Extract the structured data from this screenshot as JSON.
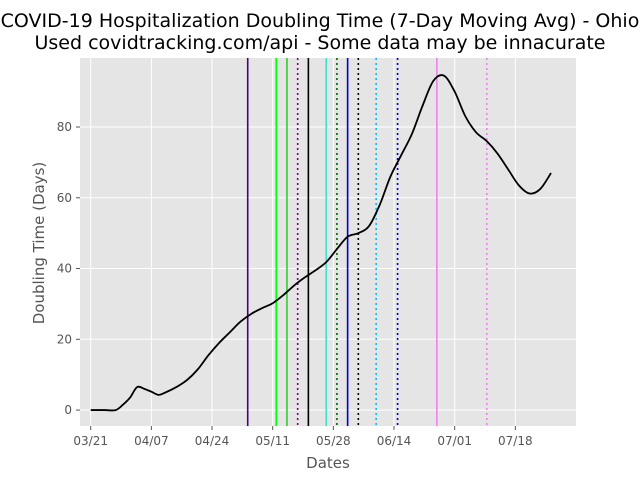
{
  "chart_data": {
    "type": "line",
    "title_lines": [
      "COVID-19 Hospitalization Doubling Time (7-Day Moving Avg) - Ohio",
      "Used covidtracking.com/api - Some data may be innacurate"
    ],
    "xlabel": "Dates",
    "ylabel": "Doubling Time (Days)",
    "x_axis": {
      "type": "date",
      "year": 2020,
      "range": [
        "2020-03-18",
        "2020-08-04"
      ]
    },
    "ylim": [
      -4.5,
      99.5
    ],
    "grid": true,
    "x_ticks": [
      {
        "date": "2020-03-21",
        "label": "03/21"
      },
      {
        "date": "2020-04-07",
        "label": "04/07"
      },
      {
        "date": "2020-04-24",
        "label": "04/24"
      },
      {
        "date": "2020-05-11",
        "label": "05/11"
      },
      {
        "date": "2020-05-28",
        "label": "05/28"
      },
      {
        "date": "2020-06-14",
        "label": "06/14"
      },
      {
        "date": "2020-07-01",
        "label": "07/01"
      },
      {
        "date": "2020-07-18",
        "label": "07/18"
      }
    ],
    "y_ticks": [
      {
        "value": 0,
        "label": "0"
      },
      {
        "value": 20,
        "label": "20"
      },
      {
        "value": 40,
        "label": "40"
      },
      {
        "value": 60,
        "label": "60"
      },
      {
        "value": 80,
        "label": "80"
      }
    ],
    "series": [
      {
        "color": "#000000",
        "points": [
          [
            "2020-03-21",
            0
          ],
          [
            "2020-03-25",
            0
          ],
          [
            "2020-03-28",
            0
          ],
          [
            "2020-03-30",
            1.5
          ],
          [
            "2020-04-01",
            3.5
          ],
          [
            "2020-04-03",
            6.5
          ],
          [
            "2020-04-05",
            6
          ],
          [
            "2020-04-07",
            5.2
          ],
          [
            "2020-04-09",
            4.3
          ],
          [
            "2020-04-11",
            5.0
          ],
          [
            "2020-04-14",
            6.5
          ],
          [
            "2020-04-17",
            8.5
          ],
          [
            "2020-04-20",
            11.5
          ],
          [
            "2020-04-23",
            15.5
          ],
          [
            "2020-04-26",
            19
          ],
          [
            "2020-04-29",
            22
          ],
          [
            "2020-05-02",
            25
          ],
          [
            "2020-05-05",
            27.2
          ],
          [
            "2020-05-08",
            28.8
          ],
          [
            "2020-05-11",
            30.2
          ],
          [
            "2020-05-14",
            32.5
          ],
          [
            "2020-05-17",
            35.2
          ],
          [
            "2020-05-20",
            37.5
          ],
          [
            "2020-05-23",
            39.5
          ],
          [
            "2020-05-26",
            41.8
          ],
          [
            "2020-05-29",
            45.5
          ],
          [
            "2020-06-01",
            49
          ],
          [
            "2020-06-04",
            50
          ],
          [
            "2020-06-07",
            52
          ],
          [
            "2020-06-10",
            58
          ],
          [
            "2020-06-13",
            66
          ],
          [
            "2020-06-16",
            72
          ],
          [
            "2020-06-19",
            78
          ],
          [
            "2020-06-22",
            86
          ],
          [
            "2020-06-25",
            93
          ],
          [
            "2020-06-28",
            94.5
          ],
          [
            "2020-07-01",
            90
          ],
          [
            "2020-07-04",
            83
          ],
          [
            "2020-07-07",
            78.5
          ],
          [
            "2020-07-10",
            76
          ],
          [
            "2020-07-13",
            72.5
          ],
          [
            "2020-07-16",
            68
          ],
          [
            "2020-07-19",
            63.5
          ],
          [
            "2020-07-22",
            61.2
          ],
          [
            "2020-07-25",
            62.5
          ],
          [
            "2020-07-28",
            67
          ]
        ]
      }
    ],
    "vertical_lines": [
      {
        "date": "2020-05-04",
        "color": "#4b0082",
        "style": "solid"
      },
      {
        "date": "2020-05-12",
        "color": "#00ff00",
        "style": "solid"
      },
      {
        "date": "2020-05-15",
        "color": "#32cd32",
        "style": "solid"
      },
      {
        "date": "2020-05-18",
        "color": "#800080",
        "style": "dotted"
      },
      {
        "date": "2020-05-21",
        "color": "#000000",
        "style": "solid"
      },
      {
        "date": "2020-05-26",
        "color": "#40e0d0",
        "style": "solid"
      },
      {
        "date": "2020-05-29",
        "color": "#006400",
        "style": "dotted"
      },
      {
        "date": "2020-06-01",
        "color": "#0000cd",
        "style": "solid"
      },
      {
        "date": "2020-06-04",
        "color": "#000000",
        "style": "dotted"
      },
      {
        "date": "2020-06-09",
        "color": "#00bfff",
        "style": "dotted"
      },
      {
        "date": "2020-06-15",
        "color": "#0000cd",
        "style": "dotted"
      },
      {
        "date": "2020-06-26",
        "color": "#ee82ee",
        "style": "solid"
      },
      {
        "date": "2020-07-10",
        "color": "#ee82ee",
        "style": "dotted"
      }
    ]
  }
}
